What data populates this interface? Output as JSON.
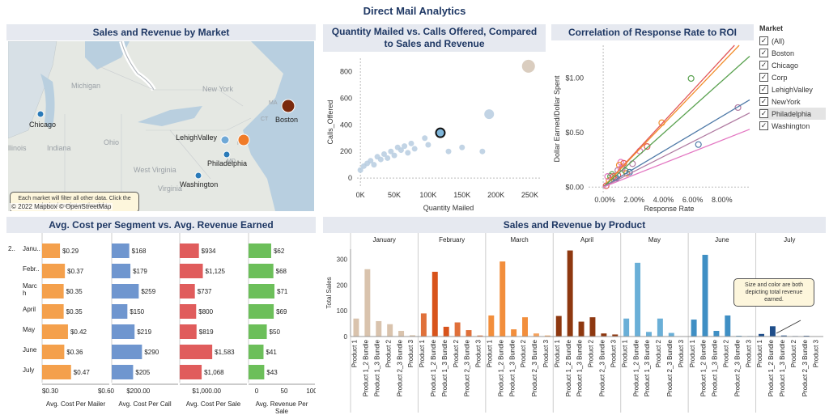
{
  "dashboard_title": "Direct Mail Analytics",
  "map_panel": {
    "title": "Sales and Revenue by Market",
    "state_labels": [
      "Michigan",
      "New York",
      "Ohio",
      "Indiana",
      "llinois",
      "West Virginia",
      "Virginia",
      "MA",
      "CT",
      "NJ",
      "MD"
    ],
    "markets": [
      {
        "name": "Chicago",
        "color": "#2a7ab8"
      },
      {
        "name": "Boston",
        "color": "#7a2a0e"
      },
      {
        "name": "LehighValley",
        "color": "#6fa8d6"
      },
      {
        "name": "NJ",
        "color": "#f07b28"
      },
      {
        "name": "Philadelphia",
        "color": "#2a7ab8"
      },
      {
        "name": "Washington",
        "color": "#2a7ab8"
      }
    ],
    "note": "Each market will filter all other data.  Click the desired market on the right.",
    "attribution": "© 2022 Mapbox  © OpenStreetMap"
  },
  "scatter_panel": {
    "title_line1": "Quantity Mailed vs. Calls Offered, Compared",
    "title_line2": "to Sales and Revenue",
    "chart_data": {
      "type": "scatter",
      "xlabel": "Quantity Mailed",
      "ylabel": "Calls_Offered",
      "x_ticks": [
        "0K",
        "50K",
        "100K",
        "150K",
        "200K",
        "250K"
      ],
      "y_ticks": [
        "0",
        "200",
        "400",
        "600",
        "800"
      ],
      "xlim": [
        -5000,
        265000
      ],
      "ylim": [
        -60,
        900
      ],
      "points": [
        {
          "x": 0,
          "y": 60
        },
        {
          "x": 5000,
          "y": 90
        },
        {
          "x": 10000,
          "y": 110
        },
        {
          "x": 15000,
          "y": 130
        },
        {
          "x": 20000,
          "y": 100
        },
        {
          "x": 25000,
          "y": 160
        },
        {
          "x": 30000,
          "y": 140
        },
        {
          "x": 35000,
          "y": 180
        },
        {
          "x": 40000,
          "y": 150
        },
        {
          "x": 45000,
          "y": 200
        },
        {
          "x": 50000,
          "y": 170
        },
        {
          "x": 55000,
          "y": 230
        },
        {
          "x": 60000,
          "y": 210
        },
        {
          "x": 65000,
          "y": 240
        },
        {
          "x": 70000,
          "y": 190
        },
        {
          "x": 75000,
          "y": 260
        },
        {
          "x": 80000,
          "y": 220
        },
        {
          "x": 95000,
          "y": 300
        },
        {
          "x": 100000,
          "y": 250
        },
        {
          "x": 115000,
          "y": 350
        },
        {
          "x": 120000,
          "y": 330
        },
        {
          "x": 130000,
          "y": 200
        },
        {
          "x": 150000,
          "y": 230
        },
        {
          "x": 180000,
          "y": 200
        },
        {
          "x": 190000,
          "y": 480
        },
        {
          "x": 248000,
          "y": 840
        }
      ],
      "highlight": {
        "x": 118000,
        "y": 340
      }
    }
  },
  "corr_panel": {
    "title": "Correlation of Response Rate to ROI",
    "chart_data": {
      "type": "scatter",
      "xlabel": "Response Rate",
      "ylabel": "Dollar Earned/Dollar Spent",
      "x_ticks": [
        "0.00%",
        "2.00%",
        "4.00%",
        "6.00%",
        "8.00%"
      ],
      "y_ticks": [
        "$0.00",
        "$0.50",
        "$1.00"
      ],
      "xlim": [
        -0.01,
        0.1
      ],
      "ylim": [
        -0.05,
        1.3
      ],
      "trend_lines": [
        {
          "color": "#e15759",
          "slope": 14.5
        },
        {
          "color": "#f28e2b",
          "slope": 14.0
        },
        {
          "color": "#59a14f",
          "slope": 12.0
        },
        {
          "color": "#4e79a7",
          "slope": 8.0
        },
        {
          "color": "#b07aa1",
          "slope": 6.8
        },
        {
          "color": "#e377c2",
          "slope": 5.3
        }
      ]
    }
  },
  "legend": {
    "title": "Market",
    "items": [
      {
        "label": "(All)",
        "checked": true
      },
      {
        "label": "Boston",
        "checked": true
      },
      {
        "label": "Chicago",
        "checked": true
      },
      {
        "label": "Corp",
        "checked": true
      },
      {
        "label": "LehighValley",
        "checked": true
      },
      {
        "label": "NewYork",
        "checked": true
      },
      {
        "label": "Philadelphia",
        "checked": true
      },
      {
        "label": "Washington",
        "checked": true
      }
    ]
  },
  "cost_panel": {
    "title": "Avg. Cost per Segment vs. Avg. Revenue Earned",
    "year_label": "2..",
    "months": [
      "Janu..",
      "Febr..",
      "Marc h",
      "April",
      "May",
      "June",
      "July"
    ],
    "chart_data": {
      "type": "bar",
      "series": [
        {
          "name": "Avg. Cost Per Mailer",
          "color": "#f4a04c",
          "max": 0.6,
          "values": [
            0.29,
            0.37,
            0.35,
            0.35,
            0.42,
            0.36,
            0.47
          ],
          "labels": [
            "$0.29",
            "$0.37",
            "$0.35",
            "$0.35",
            "$0.42",
            "$0.36",
            "$0.47"
          ],
          "ticks": [
            "$0.30",
            "$0.60"
          ]
        },
        {
          "name": "Avg. Cost Per Call",
          "color": "#6f96cf",
          "max": 350,
          "values": [
            168,
            179,
            259,
            150,
            219,
            290,
            205
          ],
          "labels": [
            "$168",
            "$179",
            "$259",
            "$150",
            "$219",
            "$290",
            "$205"
          ],
          "ticks": [
            "$200.00"
          ]
        },
        {
          "name": "Avg. Cost Per Sale",
          "color": "#e05c5c",
          "max": 1800,
          "values": [
            934,
            1125,
            737,
            800,
            819,
            1583,
            1068
          ],
          "labels": [
            "$934",
            "$1,125",
            "$737",
            "$800",
            "$819",
            "$1,583",
            "$1,068"
          ],
          "ticks": [
            "$1,000.00"
          ]
        },
        {
          "name": "Avg. Revenue Per Sale",
          "color": "#6cbf5a",
          "max": 100,
          "values": [
            62,
            68,
            71,
            69,
            50,
            41,
            43
          ],
          "labels": [
            "$62",
            "$68",
            "$71",
            "$69",
            "$50",
            "$41",
            "$43"
          ],
          "ticks": [
            "0",
            "50",
            "100"
          ]
        }
      ]
    }
  },
  "product_panel": {
    "title": "Sales and Revenue by Product",
    "note": "Size and color are both depicting total revenue earned.",
    "chart_data": {
      "type": "bar",
      "ylabel": "Total Sales",
      "y_ticks": [
        "0",
        "100",
        "200",
        "300"
      ],
      "ylim": [
        0,
        340
      ],
      "products": [
        "Product 1",
        "Product 1_2 Bundle",
        "Product 1_3 Bundle",
        "Product 2",
        "Product 2_3 Bundle",
        "Product 3"
      ],
      "months": [
        {
          "name": "January",
          "values": [
            70,
            262,
            60,
            48,
            22,
            5
          ],
          "colors": [
            "#d9c3ad",
            "#d9c3ad",
            "#d9c3ad",
            "#d9c3ad",
            "#d9c3ad",
            "#d9c3ad"
          ]
        },
        {
          "name": "February",
          "values": [
            90,
            252,
            38,
            55,
            25,
            4
          ],
          "colors": [
            "#e0703a",
            "#d8531b",
            "#d8531b",
            "#e0703a",
            "#e0703a",
            "#e0703a"
          ]
        },
        {
          "name": "March",
          "values": [
            82,
            292,
            28,
            75,
            12,
            4
          ],
          "colors": [
            "#f28e3c",
            "#f28e3c",
            "#f28e3c",
            "#f28e3c",
            "#f5a35e",
            "#f5a35e"
          ]
        },
        {
          "name": "April",
          "values": [
            80,
            335,
            58,
            75,
            12,
            8
          ],
          "colors": [
            "#8e3810",
            "#8e3810",
            "#8e3810",
            "#8e3810",
            "#8e3810",
            "#8e3810"
          ]
        },
        {
          "name": "May",
          "values": [
            70,
            287,
            18,
            70,
            14,
            0
          ],
          "colors": [
            "#6aafd7",
            "#6aafd7",
            "#6aafd7",
            "#6aafd7",
            "#6aafd7",
            "#6aafd7"
          ]
        },
        {
          "name": "June",
          "values": [
            66,
            318,
            22,
            82,
            3,
            2
          ],
          "colors": [
            "#3f8fc4",
            "#3f8fc4",
            "#3f8fc4",
            "#3f8fc4",
            "#3f8fc4",
            "#3f8fc4"
          ]
        },
        {
          "name": "July",
          "values": [
            10,
            40,
            4,
            2,
            3,
            0
          ],
          "colors": [
            "#1f4e8a",
            "#1f4e8a",
            "#1f4e8a",
            "#1f4e8a",
            "#1f4e8a",
            "#1f4e8a"
          ]
        }
      ]
    }
  }
}
